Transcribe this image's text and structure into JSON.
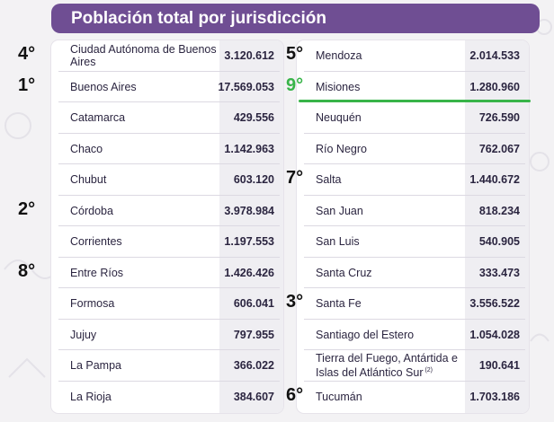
{
  "title": "Población total por jurisdicción",
  "left": [
    {
      "name": "Ciudad Autónoma de Buenos Aires",
      "value": "3.120.612",
      "rank": "4°"
    },
    {
      "name": "Buenos Aires",
      "value": "17.569.053",
      "rank": "1°"
    },
    {
      "name": "Catamarca",
      "value": "429.556",
      "rank": ""
    },
    {
      "name": "Chaco",
      "value": "1.142.963",
      "rank": ""
    },
    {
      "name": "Chubut",
      "value": "603.120",
      "rank": ""
    },
    {
      "name": "Córdoba",
      "value": "3.978.984",
      "rank": "2°"
    },
    {
      "name": "Corrientes",
      "value": "1.197.553",
      "rank": ""
    },
    {
      "name": "Entre Ríos",
      "value": "1.426.426",
      "rank": "8°"
    },
    {
      "name": "Formosa",
      "value": "606.041",
      "rank": ""
    },
    {
      "name": "Jujuy",
      "value": "797.955",
      "rank": ""
    },
    {
      "name": "La Pampa",
      "value": "366.022",
      "rank": ""
    },
    {
      "name": "La Rioja",
      "value": "384.607",
      "rank": ""
    }
  ],
  "right": [
    {
      "name": "Mendoza",
      "value": "2.014.533",
      "rank": "5°"
    },
    {
      "name": "Misiones",
      "value": "1.280.960",
      "rank": "9°",
      "highlight": true
    },
    {
      "name": "Neuquén",
      "value": "726.590",
      "rank": ""
    },
    {
      "name": "Río Negro",
      "value": "762.067",
      "rank": ""
    },
    {
      "name": "Salta",
      "value": "1.440.672",
      "rank": "7°"
    },
    {
      "name": "San Juan",
      "value": "818.234",
      "rank": ""
    },
    {
      "name": "San Luis",
      "value": "540.905",
      "rank": ""
    },
    {
      "name": "Santa Cruz",
      "value": "333.473",
      "rank": ""
    },
    {
      "name": "Santa Fe",
      "value": "3.556.522",
      "rank": "3°"
    },
    {
      "name": "Santiago del Estero",
      "value": "1.054.028",
      "rank": ""
    },
    {
      "name": "Tierra del Fuego, Antártida e Islas del Atlántico Sur",
      "value": "190.641",
      "rank": "",
      "note": "(2)"
    },
    {
      "name": "Tucumán",
      "value": "1.703.186",
      "rank": "6°"
    }
  ],
  "colors": {
    "title_bg": "#6f4e93",
    "highlight": "#38b449",
    "value_shade": "#efeef2"
  }
}
